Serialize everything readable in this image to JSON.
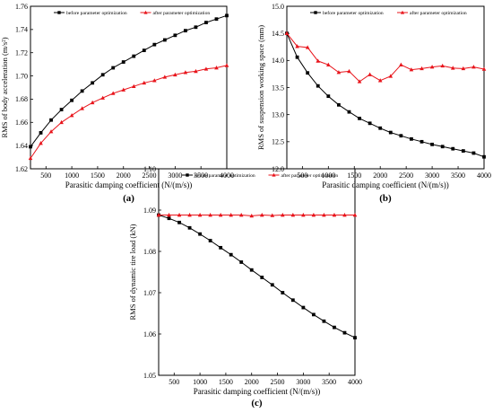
{
  "chart_data": [
    {
      "type": "line",
      "panel_label": "(a)",
      "xlabel": "Parasitic damping coefficient (N/(m/s))",
      "ylabel": "RMS of body acceleration (m/s²)",
      "xlim": [
        200,
        4000
      ],
      "ylim": [
        1.62,
        1.76
      ],
      "xticks": [
        "500",
        "1000",
        "1500",
        "2000",
        "2500",
        "3000",
        "3500",
        "4000"
      ],
      "yticks": [
        "1.62",
        "1.64",
        "1.66",
        "1.68",
        "1.70",
        "1.72",
        "1.74",
        "1.76"
      ],
      "legend_position": "top-right",
      "x": [
        200,
        400,
        600,
        800,
        1000,
        1200,
        1400,
        1600,
        1800,
        2000,
        2200,
        2400,
        2600,
        2800,
        3000,
        3200,
        3400,
        3600,
        3800,
        4000
      ],
      "series": [
        {
          "name": "before parameter optimization",
          "color": "#000000",
          "marker": "square",
          "values": [
            1.639,
            1.651,
            1.662,
            1.671,
            1.679,
            1.687,
            1.694,
            1.701,
            1.707,
            1.712,
            1.717,
            1.722,
            1.727,
            1.731,
            1.735,
            1.739,
            1.742,
            1.746,
            1.749,
            1.752
          ]
        },
        {
          "name": "after parameter optimization",
          "color": "#e8141b",
          "marker": "triangle",
          "values": [
            1.629,
            1.642,
            1.652,
            1.66,
            1.666,
            1.672,
            1.677,
            1.681,
            1.685,
            1.688,
            1.691,
            1.694,
            1.696,
            1.699,
            1.701,
            1.703,
            1.704,
            1.706,
            1.707,
            1.709
          ]
        }
      ]
    },
    {
      "type": "line",
      "panel_label": "(b)",
      "xlabel": "Parasitic damping coefficient (N/(m/s))",
      "ylabel": "RMS of suspension working space (mm)",
      "xlim": [
        200,
        4000
      ],
      "ylim": [
        12.0,
        15.0
      ],
      "xticks": [
        "500",
        "1000",
        "1500",
        "2000",
        "2500",
        "3000",
        "3500",
        "4000"
      ],
      "yticks": [
        "12.0",
        "12.5",
        "13.0",
        "13.5",
        "14.0",
        "14.5",
        "15.0"
      ],
      "legend_position": "top-right",
      "x": [
        200,
        400,
        600,
        800,
        1000,
        1200,
        1400,
        1600,
        1800,
        2000,
        2200,
        2400,
        2600,
        2800,
        3000,
        3200,
        3400,
        3600,
        3800,
        4000
      ],
      "series": [
        {
          "name": "before parameter optimization",
          "color": "#000000",
          "marker": "square",
          "values": [
            14.5,
            14.06,
            13.77,
            13.53,
            13.34,
            13.18,
            13.05,
            12.93,
            12.84,
            12.75,
            12.67,
            12.61,
            12.55,
            12.5,
            12.45,
            12.41,
            12.37,
            12.33,
            12.29,
            12.22
          ]
        },
        {
          "name": "after parameter optimization",
          "color": "#e8141b",
          "marker": "triangle",
          "values": [
            14.5,
            14.26,
            14.24,
            13.99,
            13.92,
            13.78,
            13.8,
            13.61,
            13.74,
            13.63,
            13.71,
            13.92,
            13.83,
            13.85,
            13.88,
            13.9,
            13.86,
            13.85,
            13.88,
            13.84
          ]
        }
      ]
    },
    {
      "type": "line",
      "panel_label": "(c)",
      "xlabel": "Parasitic damping coefficient (N/(m/s))",
      "ylabel": "RMS of dynamic tire load (kN)",
      "xlim": [
        200,
        4000
      ],
      "ylim": [
        1.05,
        1.1
      ],
      "xticks": [
        "500",
        "1000",
        "1500",
        "2000",
        "2500",
        "3000",
        "3500",
        "4000"
      ],
      "yticks": [
        "1.05",
        "1.06",
        "1.07",
        "1.08",
        "1.09",
        "1.10"
      ],
      "legend_position": "top-right",
      "x": [
        200,
        400,
        600,
        800,
        1000,
        1200,
        1400,
        1600,
        1800,
        2000,
        2200,
        2400,
        2600,
        2800,
        3000,
        3200,
        3400,
        3600,
        3800,
        4000
      ],
      "series": [
        {
          "name": "before parameter optimization",
          "color": "#000000",
          "marker": "square",
          "values": [
            1.0888,
            1.088,
            1.087,
            1.0857,
            1.0842,
            1.0826,
            1.0809,
            1.0792,
            1.0774,
            1.0755,
            1.0737,
            1.0719,
            1.07,
            1.0682,
            1.0664,
            1.0647,
            1.0631,
            1.0616,
            1.0603,
            1.0591
          ]
        },
        {
          "name": "after parameter optimization",
          "color": "#e8141b",
          "marker": "triangle",
          "values": [
            1.0888,
            1.0888,
            1.0888,
            1.0888,
            1.0888,
            1.0888,
            1.0888,
            1.0888,
            1.0888,
            1.0886,
            1.0888,
            1.0887,
            1.0888,
            1.0888,
            1.0888,
            1.0888,
            1.0888,
            1.0888,
            1.0888,
            1.0888
          ]
        }
      ]
    }
  ]
}
